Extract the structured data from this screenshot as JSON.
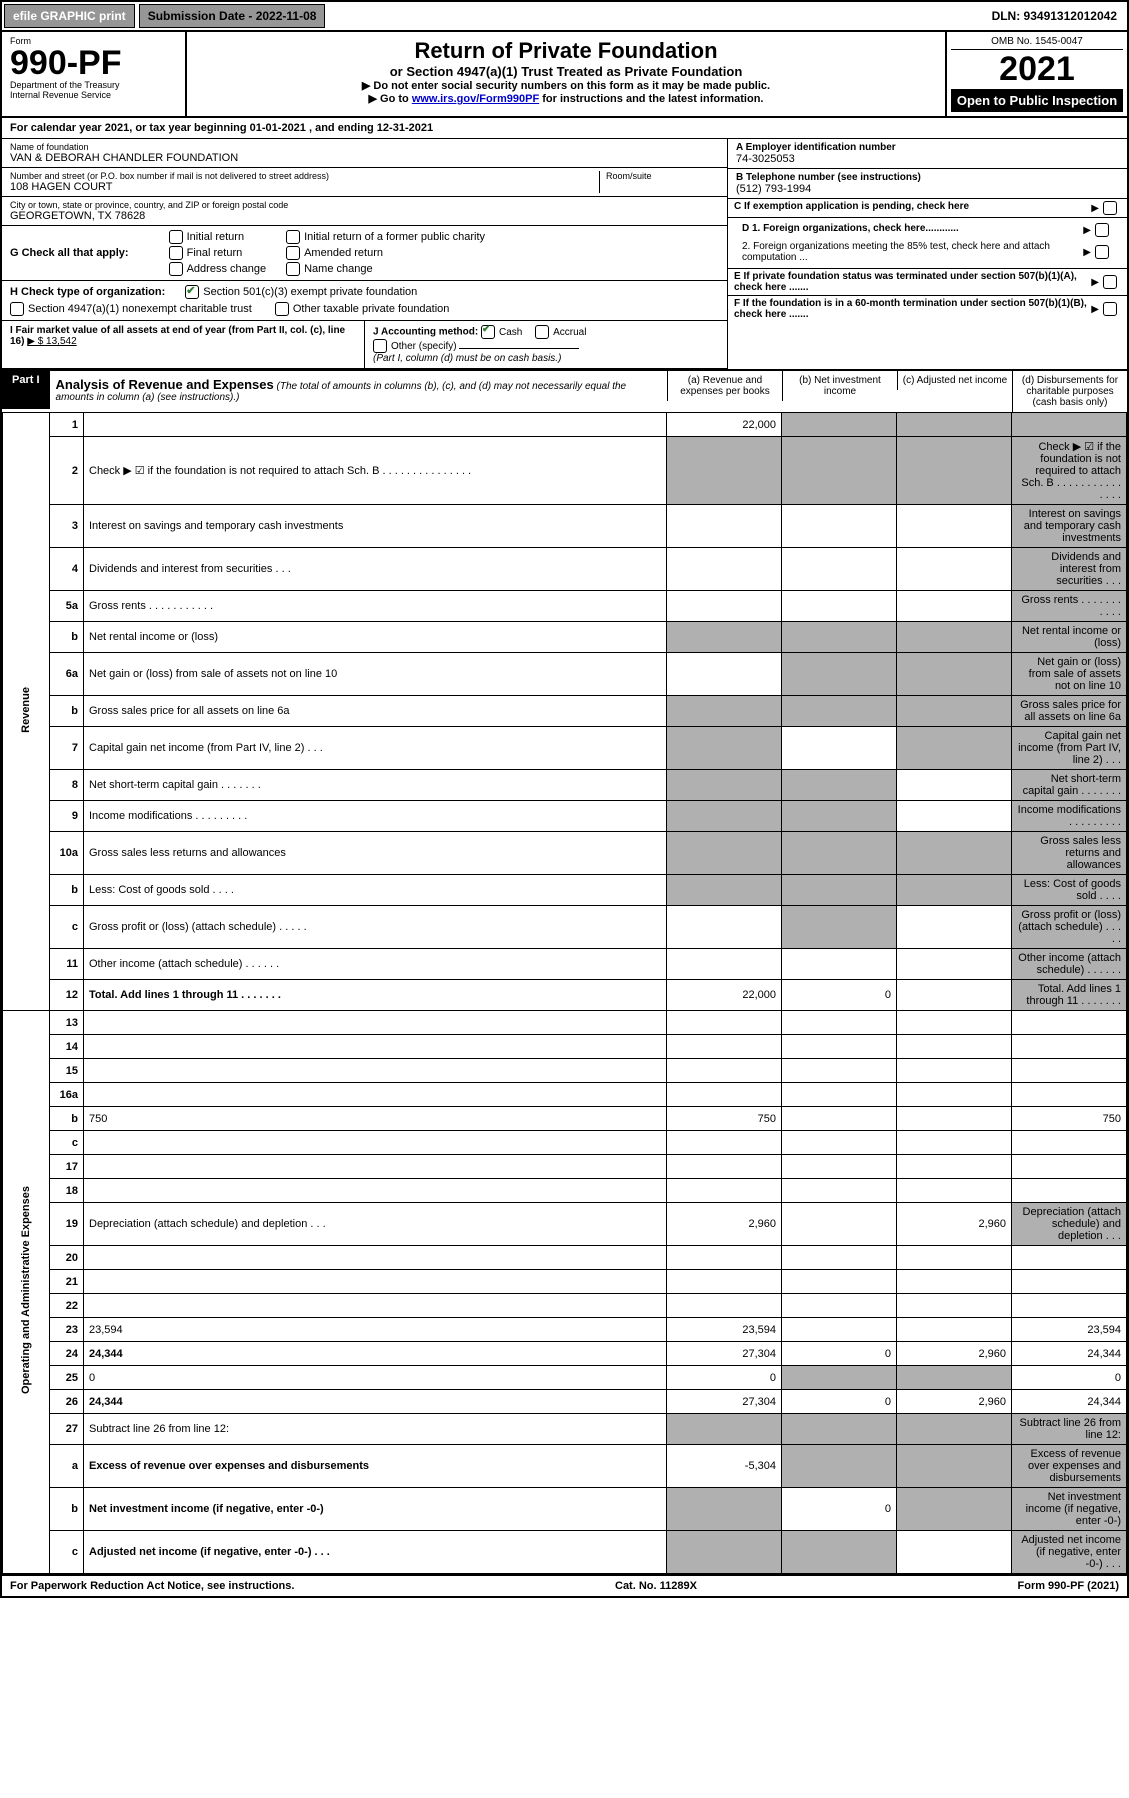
{
  "topbar": {
    "efile": "efile GRAPHIC print",
    "subdate": "Submission Date - 2022-11-08",
    "dln": "DLN: 93491312012042"
  },
  "header": {
    "form_label": "Form",
    "form_no": "990-PF",
    "dept": "Department of the Treasury",
    "irs": "Internal Revenue Service",
    "title": "Return of Private Foundation",
    "subtitle": "or Section 4947(a)(1) Trust Treated as Private Foundation",
    "note1": "▶ Do not enter social security numbers on this form as it may be made public.",
    "note2_pre": "▶ Go to ",
    "note2_link": "www.irs.gov/Form990PF",
    "note2_post": " for instructions and the latest information.",
    "omb": "OMB No. 1545-0047",
    "year": "2021",
    "open": "Open to Public Inspection"
  },
  "calyear": "For calendar year 2021, or tax year beginning 01-01-2021                          , and ending 12-31-2021",
  "ident": {
    "name_lbl": "Name of foundation",
    "name": "VAN & DEBORAH CHANDLER FOUNDATION",
    "addr_lbl": "Number and street (or P.O. box number if mail is not delivered to street address)",
    "addr": "108 HAGEN COURT",
    "room_lbl": "Room/suite",
    "city_lbl": "City or town, state or province, country, and ZIP or foreign postal code",
    "city": "GEORGETOWN, TX  78628",
    "a_lbl": "A Employer identification number",
    "a_val": "74-3025053",
    "b_lbl": "B Telephone number (see instructions)",
    "b_val": "(512) 793-1994",
    "c_lbl": "C If exemption application is pending, check here",
    "d1": "D 1. Foreign organizations, check here............",
    "d2": "2. Foreign organizations meeting the 85% test, check here and attach computation ...",
    "e_lbl": "E  If private foundation status was terminated under section 507(b)(1)(A), check here .......",
    "f_lbl": "F  If the foundation is in a 60-month termination under section 507(b)(1)(B), check here ......."
  },
  "g": {
    "lbl": "G Check all that apply:",
    "opts": [
      "Initial return",
      "Initial return of a former public charity",
      "Final return",
      "Amended return",
      "Address change",
      "Name change"
    ]
  },
  "h": {
    "lbl": "H Check type of organization:",
    "o1": "Section 501(c)(3) exempt private foundation",
    "o2": "Section 4947(a)(1) nonexempt charitable trust",
    "o3": "Other taxable private foundation"
  },
  "i": {
    "lbl": "I Fair market value of all assets at end of year (from Part II, col. (c), line 16)",
    "val": "▶ $  13,542"
  },
  "j": {
    "lbl": "J Accounting method:",
    "cash": "Cash",
    "accrual": "Accrual",
    "other": "Other (specify)",
    "note": "(Part I, column (d) must be on cash basis.)"
  },
  "part1": {
    "hdr": "Part I",
    "title": "Analysis of Revenue and Expenses",
    "desc": "(The total of amounts in columns (b), (c), and (d) may not necessarily equal the amounts in column (a) (see instructions).)",
    "cols": {
      "a": "(a)    Revenue and expenses per books",
      "b": "(b)    Net investment income",
      "c": "(c)    Adjusted net income",
      "d": "(d)    Disbursements for charitable purposes (cash basis only)"
    }
  },
  "side": {
    "rev": "Revenue",
    "exp": "Operating and Administrative Expenses"
  },
  "rows": [
    {
      "n": "1",
      "d": "",
      "a": "22,000",
      "b": "",
      "c": "",
      "gb": true,
      "gc": true,
      "gd": true
    },
    {
      "n": "2",
      "d": "Check ▶ ☑ if the foundation is not required to attach Sch. B     .   .   .   .   .   .   .   .   .   .   .   .   .   .   .",
      "ga": true,
      "gb": true,
      "gc": true,
      "gd": true
    },
    {
      "n": "3",
      "d": "Interest on savings and temporary cash investments",
      "a": "",
      "b": "",
      "c": "",
      "gd": true
    },
    {
      "n": "4",
      "d": "Dividends and interest from securities    .    .    .",
      "a": "",
      "b": "",
      "c": "",
      "gd": true
    },
    {
      "n": "5a",
      "d": "Gross rents     .    .    .    .    .    .    .    .    .    .    .",
      "a": "",
      "b": "",
      "c": "",
      "gd": true
    },
    {
      "n": "b",
      "d": "Net rental income or (loss)  ",
      "ga": true,
      "gb": true,
      "gc": true,
      "gd": true
    },
    {
      "n": "6a",
      "d": "Net gain or (loss) from sale of assets not on line 10",
      "a": "",
      "gb": true,
      "gc": true,
      "gd": true
    },
    {
      "n": "b",
      "d": "Gross sales price for all assets on line 6a",
      "ga": true,
      "gb": true,
      "gc": true,
      "gd": true
    },
    {
      "n": "7",
      "d": "Capital gain net income (from Part IV, line 2)    .    .    .",
      "ga": true,
      "b": "",
      "gc": true,
      "gd": true
    },
    {
      "n": "8",
      "d": "Net short-term capital gain  .    .    .    .    .    .    .",
      "ga": true,
      "gb": true,
      "c": "",
      "gd": true
    },
    {
      "n": "9",
      "d": "Income modifications  .    .    .    .    .    .    .    .    .",
      "ga": true,
      "gb": true,
      "c": "",
      "gd": true
    },
    {
      "n": "10a",
      "d": "Gross sales less returns and allowances",
      "ga": true,
      "gb": true,
      "gc": true,
      "gd": true
    },
    {
      "n": "b",
      "d": "Less: Cost of goods sold     .    .    .    .",
      "ga": true,
      "gb": true,
      "gc": true,
      "gd": true
    },
    {
      "n": "c",
      "d": "Gross profit or (loss) (attach schedule)     .    .    .    .    .",
      "a": "",
      "gb": true,
      "c": "",
      "gd": true
    },
    {
      "n": "11",
      "d": "Other income (attach schedule)    .    .    .    .    .    .",
      "a": "",
      "b": "",
      "c": "",
      "gd": true
    },
    {
      "n": "12",
      "d": "Total. Add lines 1 through 11   .    .    .    .    .    .    .",
      "bold": true,
      "a": "22,000",
      "b": "0",
      "c": "",
      "gd": true
    },
    {
      "n": "13",
      "d": "",
      "a": "",
      "b": "",
      "c": ""
    },
    {
      "n": "14",
      "d": "",
      "a": "",
      "b": "",
      "c": ""
    },
    {
      "n": "15",
      "d": "",
      "a": "",
      "b": "",
      "c": ""
    },
    {
      "n": "16a",
      "d": "",
      "a": "",
      "b": "",
      "c": ""
    },
    {
      "n": "b",
      "d": "750",
      "a": "750",
      "b": "",
      "c": ""
    },
    {
      "n": "c",
      "d": "",
      "a": "",
      "b": "",
      "c": ""
    },
    {
      "n": "17",
      "d": "",
      "a": "",
      "b": "",
      "c": ""
    },
    {
      "n": "18",
      "d": "",
      "a": "",
      "b": "",
      "c": ""
    },
    {
      "n": "19",
      "d": "Depreciation (attach schedule) and depletion    .    .    .",
      "a": "2,960",
      "b": "",
      "c": "2,960",
      "gd": true
    },
    {
      "n": "20",
      "d": "",
      "a": "",
      "b": "",
      "c": ""
    },
    {
      "n": "21",
      "d": "",
      "a": "",
      "b": "",
      "c": ""
    },
    {
      "n": "22",
      "d": "",
      "a": "",
      "b": "",
      "c": ""
    },
    {
      "n": "23",
      "d": "23,594",
      "a": "23,594",
      "b": "",
      "c": ""
    },
    {
      "n": "24",
      "d": "24,344",
      "bold": true,
      "a": "27,304",
      "b": "0",
      "c": "2,960"
    },
    {
      "n": "25",
      "d": "0",
      "a": "0",
      "gb": true,
      "gc": true
    },
    {
      "n": "26",
      "d": "24,344",
      "bold": true,
      "a": "27,304",
      "b": "0",
      "c": "2,960"
    },
    {
      "n": "27",
      "d": "Subtract line 26 from line 12:",
      "ga": true,
      "gb": true,
      "gc": true,
      "gd": true
    },
    {
      "n": "a",
      "d": "Excess of revenue over expenses and disbursements",
      "bold": true,
      "a": "-5,304",
      "gb": true,
      "gc": true,
      "gd": true
    },
    {
      "n": "b",
      "d": "Net investment income (if negative, enter -0-)",
      "bold": true,
      "ga": true,
      "b": "0",
      "gc": true,
      "gd": true
    },
    {
      "n": "c",
      "d": "Adjusted net income (if negative, enter -0-)    .    .    .",
      "bold": true,
      "ga": true,
      "gb": true,
      "c": "",
      "gd": true
    }
  ],
  "footer": {
    "left": "For Paperwork Reduction Act Notice, see instructions.",
    "mid": "Cat. No. 11289X",
    "right": "Form 990-PF (2021)"
  }
}
